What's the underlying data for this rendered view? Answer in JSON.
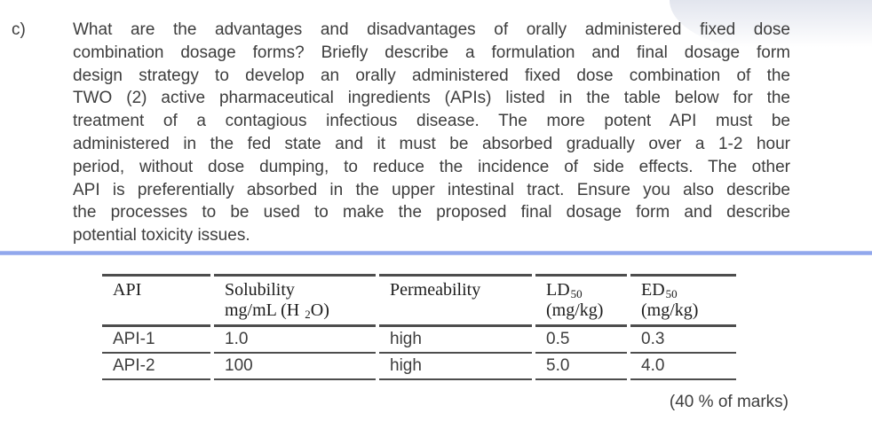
{
  "colors": {
    "accent": "#8fa6ec",
    "accent-light": "#bcc8f5",
    "table-line": "#4d4d4d",
    "text": "#3d3d3d",
    "header-text": "#1c1c1c",
    "shade": "#e2e5ee"
  },
  "question": {
    "label": "c)",
    "lines": [
      "What are the advantages and disadvantages of orally administered fixed dose",
      "combination dosage forms?  Briefly describe a formulation and final dosage form",
      "design strategy to develop an orally administered fixed dose combination of the",
      "TWO (2) active pharmaceutical ingredients (APIs) listed in the table below for the",
      "treatment of a contagious infectious disease. The more potent API must be",
      "administered in the fed state and it must be absorbed gradually over a 1-2 hour",
      "period, without dose dumping, to reduce the incidence of side effects. The other",
      "API is preferentially absorbed in the upper intestinal tract. Ensure you also describe",
      "the processes to be used to make the proposed final dosage form and describe",
      "potential toxicity issues."
    ]
  },
  "table": {
    "header": {
      "col1_line1": "API",
      "col2_line1": "Solubility",
      "col2_line2_pre": "mg/mL (H ",
      "col2_line2_sub": "2",
      "col2_line2_post": "O)",
      "col3_line1": "Permeability",
      "col4_line1": "LD",
      "col4_sub": "50",
      "col4_line2": "(mg/kg)",
      "col5_line1": "ED",
      "col5_sub": "50",
      "col5_line2": "(mg/kg)"
    },
    "rows": [
      [
        "API-1",
        "1.0",
        "high",
        "0.5",
        "0.3"
      ],
      [
        "API-2",
        "100",
        "high",
        "5.0",
        "4.0"
      ]
    ]
  },
  "marks": "(40 % of marks)"
}
